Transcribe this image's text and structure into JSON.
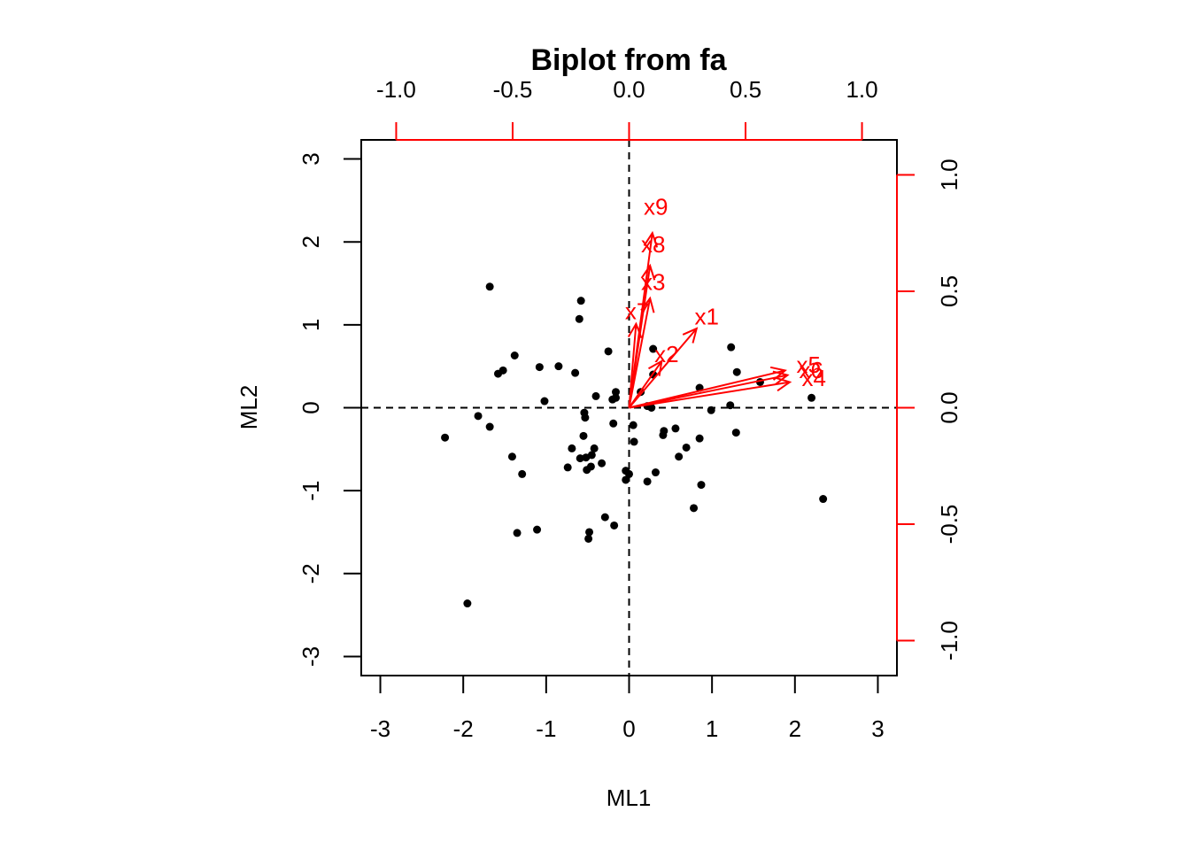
{
  "chart_data": {
    "type": "scatter",
    "title": "Biplot from fa",
    "xlabel": "ML1",
    "ylabel": "ML2",
    "xlim": [
      -3.23,
      3.23
    ],
    "ylim": [
      -3.23,
      3.23
    ],
    "x_ticks": [
      "-3",
      "-2",
      "-1",
      "0",
      "1",
      "2",
      "3"
    ],
    "y_ticks": [
      "-3",
      "-2",
      "-1",
      "0",
      "1",
      "2",
      "3"
    ],
    "secondary_axis": {
      "lim": [
        -1.15,
        1.15
      ],
      "top_ticks": [
        "-1.0",
        "-0.5",
        "0.0",
        "0.5",
        "1.0"
      ],
      "right_ticks": [
        "-1.0",
        "-0.5",
        "0.0",
        "0.5",
        "1.0"
      ],
      "color": "#ff0000"
    },
    "reference_lines": {
      "x": 0,
      "y": 0,
      "style": "dashed"
    },
    "point_color": "#000000",
    "arrow_color": "#ff0000",
    "scores": [
      [
        -1.68,
        1.46
      ],
      [
        -0.58,
        1.29
      ],
      [
        -0.6,
        1.07
      ],
      [
        -1.38,
        0.63
      ],
      [
        -1.08,
        0.49
      ],
      [
        -0.85,
        0.5
      ],
      [
        -1.52,
        0.45
      ],
      [
        -1.58,
        0.41
      ],
      [
        -0.65,
        0.42
      ],
      [
        -0.25,
        0.68
      ],
      [
        -0.16,
        0.19
      ],
      [
        -0.16,
        0.12
      ],
      [
        -0.2,
        0.1
      ],
      [
        -0.4,
        0.14
      ],
      [
        -1.02,
        0.08
      ],
      [
        -0.54,
        -0.06
      ],
      [
        -0.53,
        -0.12
      ],
      [
        -0.19,
        -0.19
      ],
      [
        -0.55,
        -0.34
      ],
      [
        -0.42,
        -0.49
      ],
      [
        -0.45,
        -0.57
      ],
      [
        -0.69,
        -0.49
      ],
      [
        -0.52,
        -0.6
      ],
      [
        -0.33,
        -0.67
      ],
      [
        -0.74,
        -0.72
      ],
      [
        -0.59,
        -0.61
      ],
      [
        -0.51,
        -0.75
      ],
      [
        -0.46,
        -0.71
      ],
      [
        -0.04,
        -0.76
      ],
      [
        0.0,
        -0.8
      ],
      [
        -0.04,
        -0.87
      ],
      [
        0.06,
        -0.41
      ],
      [
        0.05,
        -0.21
      ],
      [
        0.22,
        -0.89
      ],
      [
        0.32,
        -0.78
      ],
      [
        -1.82,
        -0.1
      ],
      [
        -1.68,
        -0.23
      ],
      [
        -2.22,
        -0.36
      ],
      [
        -1.41,
        -0.59
      ],
      [
        -1.29,
        -0.8
      ],
      [
        -1.35,
        -1.51
      ],
      [
        -1.11,
        -1.47
      ],
      [
        -0.29,
        -1.32
      ],
      [
        -0.18,
        -1.42
      ],
      [
        -0.48,
        -1.5
      ],
      [
        -0.49,
        -1.58
      ],
      [
        -1.95,
        -2.36
      ],
      [
        0.29,
        0.71
      ],
      [
        0.29,
        0.4
      ],
      [
        0.14,
        0.19
      ],
      [
        0.22,
        0.02
      ],
      [
        0.27,
        0.0
      ],
      [
        0.42,
        -0.28
      ],
      [
        0.41,
        -0.33
      ],
      [
        0.56,
        -0.25
      ],
      [
        0.6,
        -0.59
      ],
      [
        0.69,
        -0.48
      ],
      [
        0.85,
        -0.37
      ],
      [
        0.85,
        0.24
      ],
      [
        0.99,
        -0.03
      ],
      [
        1.22,
        0.03
      ],
      [
        1.23,
        0.73
      ],
      [
        1.3,
        0.43
      ],
      [
        1.29,
        -0.3
      ],
      [
        0.87,
        -0.93
      ],
      [
        0.78,
        -1.21
      ],
      [
        1.58,
        0.31
      ],
      [
        2.2,
        0.12
      ],
      [
        2.34,
        -1.1
      ]
    ],
    "loadings": [
      {
        "name": "x1",
        "x": 0.29,
        "y": 0.34
      },
      {
        "name": "x2",
        "x": 0.14,
        "y": 0.2
      },
      {
        "name": "x3",
        "x": 0.09,
        "y": 0.47
      },
      {
        "name": "x4",
        "x": 0.69,
        "y": 0.11
      },
      {
        "name": "x5",
        "x": 0.67,
        "y": 0.16
      },
      {
        "name": "x6",
        "x": 0.68,
        "y": 0.14
      },
      {
        "name": "x7",
        "x": 0.03,
        "y": 0.36
      },
      {
        "name": "x8",
        "x": 0.09,
        "y": 0.61
      },
      {
        "name": "x9",
        "x": 0.1,
        "y": 0.75
      }
    ]
  }
}
